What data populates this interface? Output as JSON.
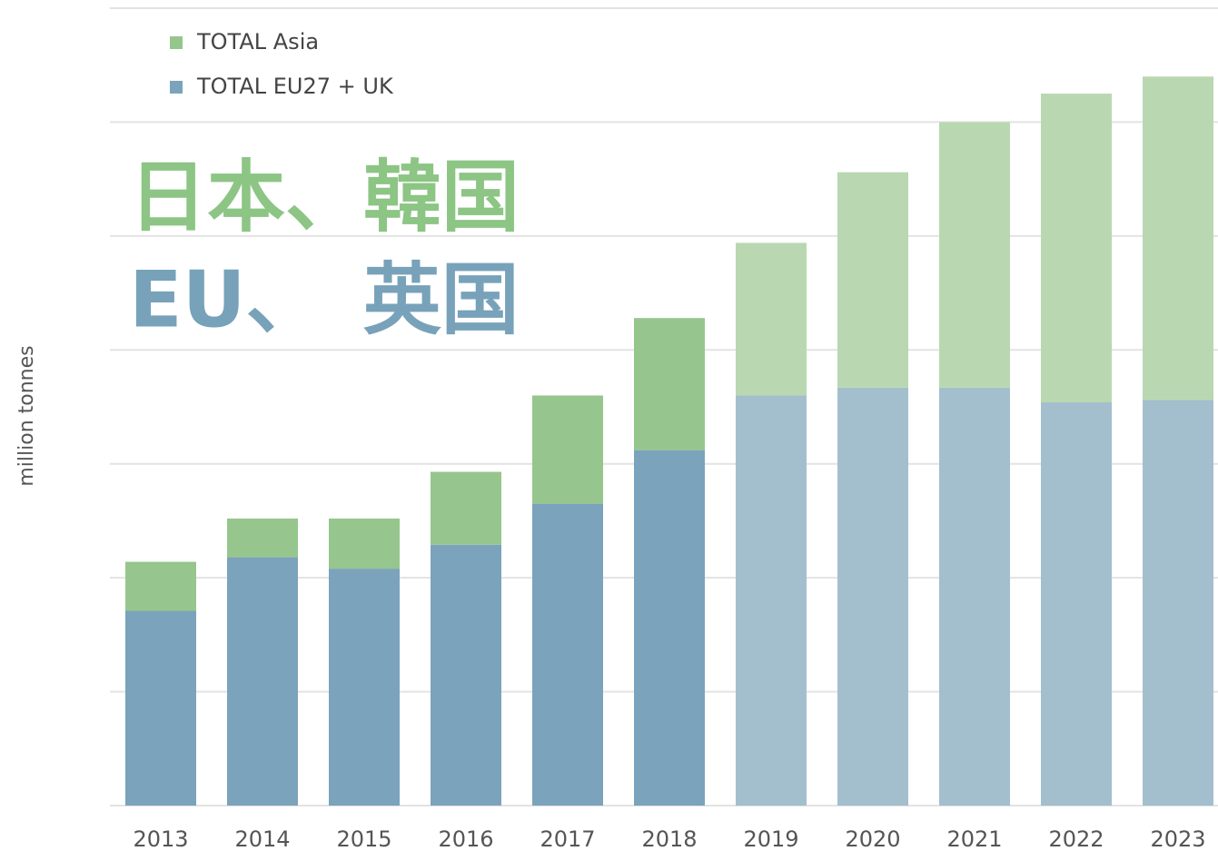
{
  "chart_data": {
    "type": "stacked_bar",
    "y_axis_label": "million tonnes",
    "categories": [
      "2013",
      "2014",
      "2015",
      "2016",
      "2017",
      "2018",
      "2019",
      "2020",
      "2021",
      "2022",
      "2023"
    ],
    "series": [
      {
        "name": "TOTAL EU27 + UK",
        "color": "#7ba3bb",
        "colors": [
          "#7ba3bb",
          "#7ba3bb",
          "#7ba3bb",
          "#7ba3bb",
          "#7ba3bb",
          "#7ba3bb",
          "#a3bfcd",
          "#a3bfcd",
          "#a3bfcd",
          "#a3bfcd",
          "#a3bfcd"
        ],
        "values": [
          1.71,
          2.18,
          2.08,
          2.29,
          2.65,
          3.12,
          3.6,
          3.67,
          3.67,
          3.54,
          3.56
        ]
      },
      {
        "name": "TOTAL Asia",
        "color": "#96c68d",
        "colors": [
          "#96c68d",
          "#96c68d",
          "#96c68d",
          "#96c68d",
          "#96c68d",
          "#96c68d",
          "#b9d8b1",
          "#b9d8b1",
          "#b9d8b1",
          "#b9d8b1",
          "#b9d8b1"
        ],
        "values": [
          0.43,
          0.34,
          0.44,
          0.64,
          0.95,
          1.16,
          1.34,
          1.89,
          2.33,
          2.71,
          2.84
        ]
      }
    ],
    "annotations": [
      {
        "text": "日本、韓国",
        "color": "#8cc584"
      },
      {
        "text": "EU、　英国",
        "color": "#77a2ba"
      }
    ],
    "ylim": [
      0,
      7
    ],
    "yticks": [
      0,
      1,
      2,
      3,
      4,
      5,
      6,
      7
    ],
    "grid": true
  }
}
